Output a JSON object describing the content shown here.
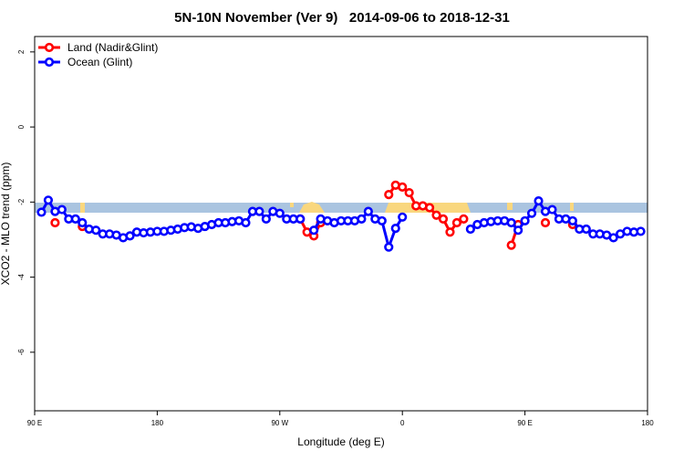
{
  "chart_data": {
    "type": "line",
    "title": "5N-10N November (Ver 9)   2014-09-06 to 2018-12-31",
    "x_label": "Longitude (deg E)",
    "y_label": "XCO2 - MLO trend (ppm)",
    "x": [
      95,
      100,
      105,
      110,
      115,
      120,
      125,
      130,
      135,
      140,
      145,
      150,
      155,
      160,
      165,
      170,
      175,
      180,
      185,
      190,
      195,
      200,
      205,
      210,
      215,
      220,
      225,
      230,
      235,
      240,
      245,
      250,
      255,
      260,
      265,
      270,
      275,
      280,
      285,
      290,
      295,
      300,
      305,
      310,
      315,
      320,
      325,
      330,
      335,
      340,
      345,
      350,
      355,
      360,
      365,
      370,
      375,
      380,
      385,
      390,
      395,
      400,
      405,
      410,
      415,
      420,
      425,
      430,
      435,
      440,
      445,
      450,
      455,
      460,
      465,
      470,
      475,
      480,
      485,
      490,
      495,
      500,
      505,
      510,
      515,
      520,
      525,
      530,
      535
    ],
    "series": [
      {
        "name": "Land (Nadir&Glint)",
        "color": "#ff0000",
        "values": [
          null,
          null,
          -2.55,
          null,
          null,
          null,
          -2.65,
          null,
          null,
          null,
          null,
          null,
          null,
          null,
          null,
          null,
          null,
          null,
          null,
          null,
          null,
          null,
          null,
          null,
          null,
          null,
          null,
          null,
          null,
          null,
          null,
          null,
          null,
          null,
          null,
          null,
          null,
          null,
          -2.45,
          -2.8,
          -2.9,
          -2.55,
          null,
          null,
          null,
          null,
          null,
          null,
          null,
          null,
          null,
          -1.8,
          -1.55,
          -1.6,
          -1.75,
          -2.1,
          -2.1,
          -2.15,
          -2.35,
          -2.45,
          -2.8,
          -2.55,
          -2.45,
          null,
          null,
          null,
          null,
          null,
          null,
          -3.15,
          -2.6,
          null,
          null,
          null,
          -2.55,
          null,
          null,
          null,
          -2.6,
          null,
          null,
          null,
          null,
          null,
          null,
          null,
          null,
          null,
          null
        ]
      },
      {
        "name": "Ocean (Glint)",
        "color": "#0000ff",
        "values": [
          -2.27,
          -1.95,
          -2.25,
          -2.2,
          -2.45,
          -2.45,
          -2.55,
          -2.72,
          -2.75,
          -2.85,
          -2.85,
          -2.88,
          -2.95,
          -2.9,
          -2.8,
          -2.82,
          -2.8,
          -2.78,
          -2.78,
          -2.75,
          -2.72,
          -2.68,
          -2.66,
          -2.7,
          -2.65,
          -2.6,
          -2.55,
          -2.55,
          -2.52,
          -2.5,
          -2.55,
          -2.25,
          -2.25,
          -2.45,
          -2.25,
          -2.3,
          -2.45,
          -2.45,
          -2.45,
          null,
          -2.75,
          -2.45,
          -2.5,
          -2.55,
          -2.5,
          -2.5,
          -2.5,
          -2.45,
          -2.25,
          -2.45,
          -2.5,
          -3.2,
          -2.7,
          -2.4,
          null,
          null,
          null,
          null,
          null,
          null,
          null,
          null,
          null,
          -2.72,
          -2.6,
          -2.55,
          -2.52,
          -2.5,
          -2.5,
          -2.55,
          -2.75,
          -2.5,
          -2.3,
          -1.97,
          -2.25,
          -2.2,
          -2.45,
          -2.45,
          -2.5,
          -2.72,
          -2.72,
          -2.85,
          -2.85,
          -2.88,
          -2.95,
          -2.85,
          -2.78,
          -2.8,
          -2.78
        ]
      }
    ],
    "xlim": [
      90,
      540
    ],
    "xticks": [
      {
        "value": 90,
        "label": "90 E"
      },
      180,
      {
        "value": 270,
        "label": "90 W"
      },
      {
        "value": 360,
        "label": "0"
      },
      {
        "value": 450,
        "label": "90 E"
      },
      {
        "value": 540,
        "label": "180"
      }
    ],
    "ylim": [
      -7.56,
      2.41
    ],
    "yticks": [
      -6,
      -4,
      -2,
      0,
      2
    ],
    "legend": "top-left"
  }
}
